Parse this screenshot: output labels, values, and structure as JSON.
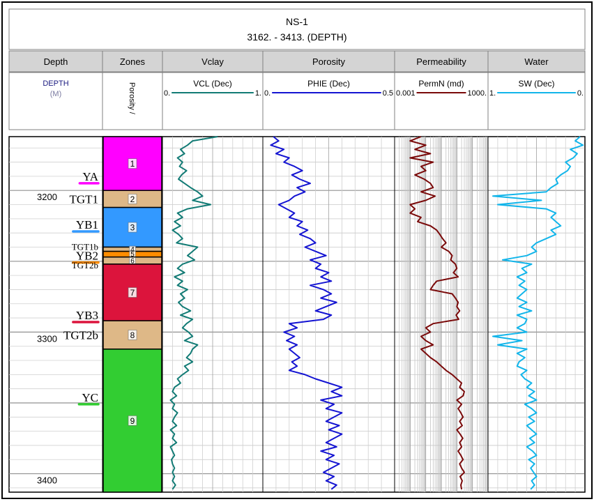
{
  "header": {
    "title": "NS-1",
    "subtitle": "3162. - 3413. (DEPTH)"
  },
  "tracks": [
    {
      "name": "Depth"
    },
    {
      "name": "Zones"
    },
    {
      "name": "Vclay"
    },
    {
      "name": "Porosity"
    },
    {
      "name": "Permeability"
    },
    {
      "name": "Water"
    }
  ],
  "curve_headers": {
    "depth": {
      "mnemonic": "DEPTH",
      "unit": "(M)"
    },
    "zones": {
      "label": "Porosity /"
    },
    "vclay": {
      "label": "VCL (Dec)",
      "left": "0.",
      "right": "1.",
      "color": "#127b75"
    },
    "porosity": {
      "label": "PHIE (Dec)",
      "left": "0.",
      "right": "0.5",
      "color": "#1414d2"
    },
    "permeability": {
      "label": "PermN (md)",
      "left": "0.001",
      "right": "1000.",
      "color": "#7a0a0a"
    },
    "water": {
      "label": "SW (Dec)",
      "left": "1.",
      "right": "0.",
      "color": "#12b5ea"
    }
  },
  "depth_labels": [
    "3200",
    "3300",
    "3400"
  ],
  "chart_data": {
    "type": "line",
    "depth_range": [
      3162,
      3413
    ],
    "depth_ticks": [
      3200,
      3300,
      3400
    ],
    "grid": true,
    "zones": [
      {
        "id": "1",
        "top": 3162,
        "base": 3200,
        "color": "#ff00ff"
      },
      {
        "id": "2",
        "top": 3200,
        "base": 3212,
        "color": "#deb887"
      },
      {
        "id": "3",
        "top": 3212,
        "base": 3240,
        "color": "#3399ff"
      },
      {
        "id": "4",
        "top": 3240,
        "base": 3243,
        "color": "#deb887"
      },
      {
        "id": "5",
        "top": 3243,
        "base": 3247,
        "color": "#ff8c00"
      },
      {
        "id": "6",
        "top": 3247,
        "base": 3252,
        "color": "#deb887"
      },
      {
        "id": "7",
        "top": 3252,
        "base": 3292,
        "color": "#dc143c"
      },
      {
        "id": "8",
        "top": 3292,
        "base": 3312,
        "color": "#deb887"
      },
      {
        "id": "9",
        "top": 3312,
        "base": 3413,
        "color": "#32cd32"
      }
    ],
    "zone_markers": [
      {
        "label": "YA",
        "depth": 3190,
        "underline": "#ff00ff"
      },
      {
        "label": "TGT1",
        "depth": 3206
      },
      {
        "label": "YB1",
        "depth": 3224,
        "underline": "#3399ff"
      },
      {
        "label": "TGT1b",
        "depth": 3239
      },
      {
        "label": "YB2",
        "depth": 3246,
        "underline": "#ff8c00"
      },
      {
        "label": "TGT2b",
        "depth": 3252
      },
      {
        "label": "YB3",
        "depth": 3288,
        "underline": "#dc143c"
      },
      {
        "label": "TGT2b",
        "depth": 3302
      },
      {
        "label": "YC",
        "depth": 3346,
        "underline": "#32cd32"
      }
    ],
    "curves": {
      "vclay": {
        "range": [
          0,
          1
        ],
        "depth": [
          3162,
          3165,
          3168,
          3171,
          3174,
          3177,
          3180,
          3183,
          3186,
          3189,
          3192,
          3195,
          3198,
          3201,
          3204,
          3207,
          3210,
          3213,
          3216,
          3219,
          3222,
          3225,
          3228,
          3231,
          3234,
          3237,
          3240,
          3243,
          3246,
          3249,
          3252,
          3255,
          3258,
          3261,
          3264,
          3267,
          3270,
          3273,
          3276,
          3279,
          3282,
          3285,
          3288,
          3291,
          3294,
          3297,
          3300,
          3303,
          3306,
          3309,
          3312,
          3315,
          3318,
          3321,
          3324,
          3327,
          3330,
          3333,
          3336,
          3339,
          3342,
          3345,
          3348,
          3351,
          3354,
          3357,
          3360,
          3363,
          3366,
          3369,
          3372,
          3375,
          3378,
          3381,
          3384,
          3387,
          3390,
          3393,
          3396,
          3399,
          3402,
          3405,
          3408,
          3411
        ],
        "value": [
          0.55,
          0.3,
          0.25,
          0.18,
          0.22,
          0.15,
          0.2,
          0.17,
          0.24,
          0.19,
          0.16,
          0.22,
          0.28,
          0.35,
          0.4,
          0.3,
          0.48,
          0.25,
          0.15,
          0.2,
          0.12,
          0.18,
          0.1,
          0.16,
          0.2,
          0.14,
          0.35,
          0.3,
          0.25,
          0.32,
          0.2,
          0.15,
          0.22,
          0.12,
          0.2,
          0.15,
          0.25,
          0.18,
          0.22,
          0.16,
          0.2,
          0.28,
          0.18,
          0.3,
          0.24,
          0.2,
          0.26,
          0.3,
          0.22,
          0.35,
          0.3,
          0.28,
          0.24,
          0.3,
          0.22,
          0.26,
          0.2,
          0.15,
          0.18,
          0.12,
          0.1,
          0.14,
          0.08,
          0.12,
          0.1,
          0.15,
          0.12,
          0.1,
          0.14,
          0.08,
          0.12,
          0.1,
          0.14,
          0.08,
          0.1,
          0.12,
          0.09,
          0.1,
          0.12,
          0.1,
          0.12,
          0.1,
          0.13,
          0.1
        ]
      },
      "porosity": {
        "range": [
          0,
          0.5
        ],
        "depth": [
          3162,
          3165,
          3168,
          3171,
          3174,
          3177,
          3180,
          3183,
          3186,
          3189,
          3192,
          3195,
          3198,
          3201,
          3204,
          3207,
          3210,
          3213,
          3216,
          3219,
          3222,
          3225,
          3228,
          3231,
          3234,
          3237,
          3240,
          3243,
          3246,
          3249,
          3252,
          3255,
          3258,
          3261,
          3264,
          3267,
          3270,
          3273,
          3276,
          3279,
          3282,
          3285,
          3288,
          3291,
          3294,
          3297,
          3300,
          3303,
          3306,
          3309,
          3312,
          3315,
          3318,
          3321,
          3324,
          3327,
          3330,
          3333,
          3336,
          3339,
          3342,
          3345,
          3348,
          3351,
          3354,
          3357,
          3360,
          3363,
          3366,
          3369,
          3372,
          3375,
          3378,
          3381,
          3384,
          3387,
          3390,
          3393,
          3396,
          3399,
          3402,
          3405,
          3408,
          3411
        ],
        "value": [
          0.04,
          0.06,
          0.03,
          0.08,
          0.05,
          0.1,
          0.08,
          0.12,
          0.15,
          0.11,
          0.14,
          0.18,
          0.13,
          0.16,
          0.12,
          0.1,
          0.06,
          0.09,
          0.12,
          0.1,
          0.15,
          0.13,
          0.17,
          0.14,
          0.18,
          0.2,
          0.16,
          0.2,
          0.24,
          0.18,
          0.22,
          0.2,
          0.25,
          0.22,
          0.26,
          0.18,
          0.23,
          0.26,
          0.22,
          0.28,
          0.24,
          0.2,
          0.26,
          0.23,
          0.1,
          0.13,
          0.08,
          0.12,
          0.09,
          0.13,
          0.1,
          0.12,
          0.14,
          0.11,
          0.13,
          0.1,
          0.16,
          0.2,
          0.25,
          0.3,
          0.26,
          0.3,
          0.22,
          0.27,
          0.24,
          0.3,
          0.27,
          0.24,
          0.29,
          0.25,
          0.3,
          0.27,
          0.24,
          0.28,
          0.22,
          0.27,
          0.24,
          0.29,
          0.26,
          0.23,
          0.27,
          0.24,
          0.28,
          0.26
        ]
      },
      "permeability": {
        "range_log": [
          0.001,
          1000
        ],
        "depth": [
          3162,
          3165,
          3168,
          3171,
          3174,
          3177,
          3180,
          3183,
          3186,
          3189,
          3192,
          3195,
          3198,
          3201,
          3204,
          3207,
          3210,
          3213,
          3216,
          3219,
          3222,
          3225,
          3228,
          3231,
          3234,
          3237,
          3240,
          3243,
          3246,
          3249,
          3252,
          3255,
          3258,
          3261,
          3264,
          3267,
          3270,
          3273,
          3276,
          3279,
          3282,
          3285,
          3288,
          3291,
          3294,
          3297,
          3300,
          3303,
          3306,
          3309,
          3312,
          3315,
          3318,
          3321,
          3324,
          3327,
          3330,
          3333,
          3336,
          3339,
          3342,
          3345,
          3348,
          3351,
          3354,
          3357,
          3360,
          3363,
          3366,
          3369,
          3372,
          3375,
          3378,
          3381,
          3384,
          3387,
          3390,
          3393,
          3396,
          3399,
          3402,
          3405,
          3408,
          3411
        ],
        "value": [
          0.05,
          0.01,
          0.1,
          0.02,
          0.2,
          0.01,
          0.3,
          0.05,
          0.1,
          0.02,
          0.08,
          0.2,
          0.3,
          0.05,
          0.4,
          0.1,
          0.01,
          0.02,
          0.01,
          0.05,
          0.03,
          0.2,
          0.5,
          0.8,
          1.2,
          2,
          1,
          3,
          5,
          4,
          8,
          10,
          6,
          12,
          0.5,
          0.3,
          0.2,
          5,
          8,
          12,
          10,
          15,
          9,
          13,
          0.3,
          0.1,
          0.2,
          0.05,
          0.1,
          0.3,
          0.05,
          0.1,
          0.2,
          0.5,
          1,
          2,
          5,
          10,
          20,
          15,
          30,
          25,
          10,
          20,
          12,
          18,
          25,
          15,
          22,
          10,
          16,
          24,
          15,
          20,
          12,
          18,
          25,
          15,
          20,
          30,
          16,
          22,
          18,
          20
        ]
      },
      "water": {
        "range": [
          1,
          0
        ],
        "depth": [
          3162,
          3165,
          3168,
          3171,
          3174,
          3177,
          3180,
          3183,
          3186,
          3189,
          3192,
          3195,
          3198,
          3201,
          3204,
          3207,
          3210,
          3213,
          3216,
          3219,
          3222,
          3225,
          3228,
          3231,
          3234,
          3237,
          3240,
          3243,
          3246,
          3249,
          3252,
          3255,
          3258,
          3261,
          3264,
          3267,
          3270,
          3273,
          3276,
          3279,
          3282,
          3285,
          3288,
          3291,
          3294,
          3297,
          3300,
          3303,
          3306,
          3309,
          3312,
          3315,
          3318,
          3321,
          3324,
          3327,
          3330,
          3333,
          3336,
          3339,
          3342,
          3345,
          3348,
          3351,
          3354,
          3357,
          3360,
          3363,
          3366,
          3369,
          3372,
          3375,
          3378,
          3381,
          3384,
          3387,
          3390,
          3393,
          3396,
          3399,
          3402,
          3405,
          3408,
          3411
        ],
        "value": [
          0.05,
          0.1,
          0.02,
          0.15,
          0.08,
          0.12,
          0.2,
          0.15,
          0.18,
          0.25,
          0.3,
          0.28,
          0.35,
          0.4,
          0.95,
          0.45,
          0.9,
          0.4,
          0.3,
          0.35,
          0.3,
          0.25,
          0.35,
          0.3,
          0.4,
          0.5,
          0.55,
          0.5,
          0.6,
          0.85,
          0.55,
          0.65,
          0.6,
          0.7,
          0.62,
          0.68,
          0.6,
          0.65,
          0.7,
          0.6,
          0.68,
          0.55,
          0.7,
          0.6,
          0.62,
          0.7,
          0.6,
          0.95,
          0.65,
          0.9,
          0.6,
          0.7,
          0.62,
          0.68,
          0.7,
          0.6,
          0.66,
          0.62,
          0.55,
          0.6,
          0.52,
          0.58,
          0.5,
          0.62,
          0.55,
          0.5,
          0.58,
          0.52,
          0.6,
          0.55,
          0.5,
          0.57,
          0.52,
          0.6,
          0.54,
          0.5,
          0.58,
          0.52,
          0.56,
          0.53,
          0.5,
          0.55,
          0.52,
          0.56
        ]
      }
    }
  }
}
